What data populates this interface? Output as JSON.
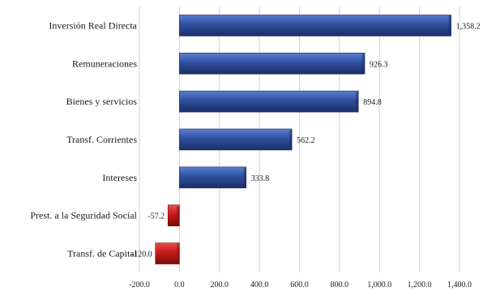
{
  "chart_data": {
    "type": "bar",
    "orientation": "horizontal",
    "title": "",
    "xlabel": "",
    "ylabel": "",
    "categories": [
      "Inversión Real Directa",
      "Remuneraciones",
      "Bienes y servicios",
      "Transf. Corrientes",
      "Intereses",
      "Prest. a la Seguridad Social",
      "Transf. de Capital"
    ],
    "values": [
      1358.2,
      926.3,
      894.8,
      562.2,
      333.8,
      -57.2,
      -120.0
    ],
    "value_labels": [
      "1,358.2",
      "926.3",
      "894.8",
      "562.2",
      "333.8",
      "-57.2",
      "-120.0"
    ],
    "xlim": [
      -200,
      1400
    ],
    "x_ticks": [
      -200,
      0,
      200,
      400,
      600,
      800,
      1000,
      1200,
      1400
    ],
    "x_tick_labels": [
      "-200.0",
      "0.0",
      "200.0",
      "400.0",
      "600.0",
      "800.0",
      "1,000.0",
      "1,200.0",
      "1,400.0"
    ],
    "grid": "vertical",
    "legend": "none",
    "colors": {
      "positive": "#2f4f9f",
      "positive_dark": "#1b2e66",
      "positive_light": "#5c7fd0",
      "negative": "#c81a1a",
      "negative_dark": "#7a0c0c",
      "negative_light": "#e85050",
      "grid": "#d0d0d0",
      "text": "#1a1a1a"
    }
  }
}
